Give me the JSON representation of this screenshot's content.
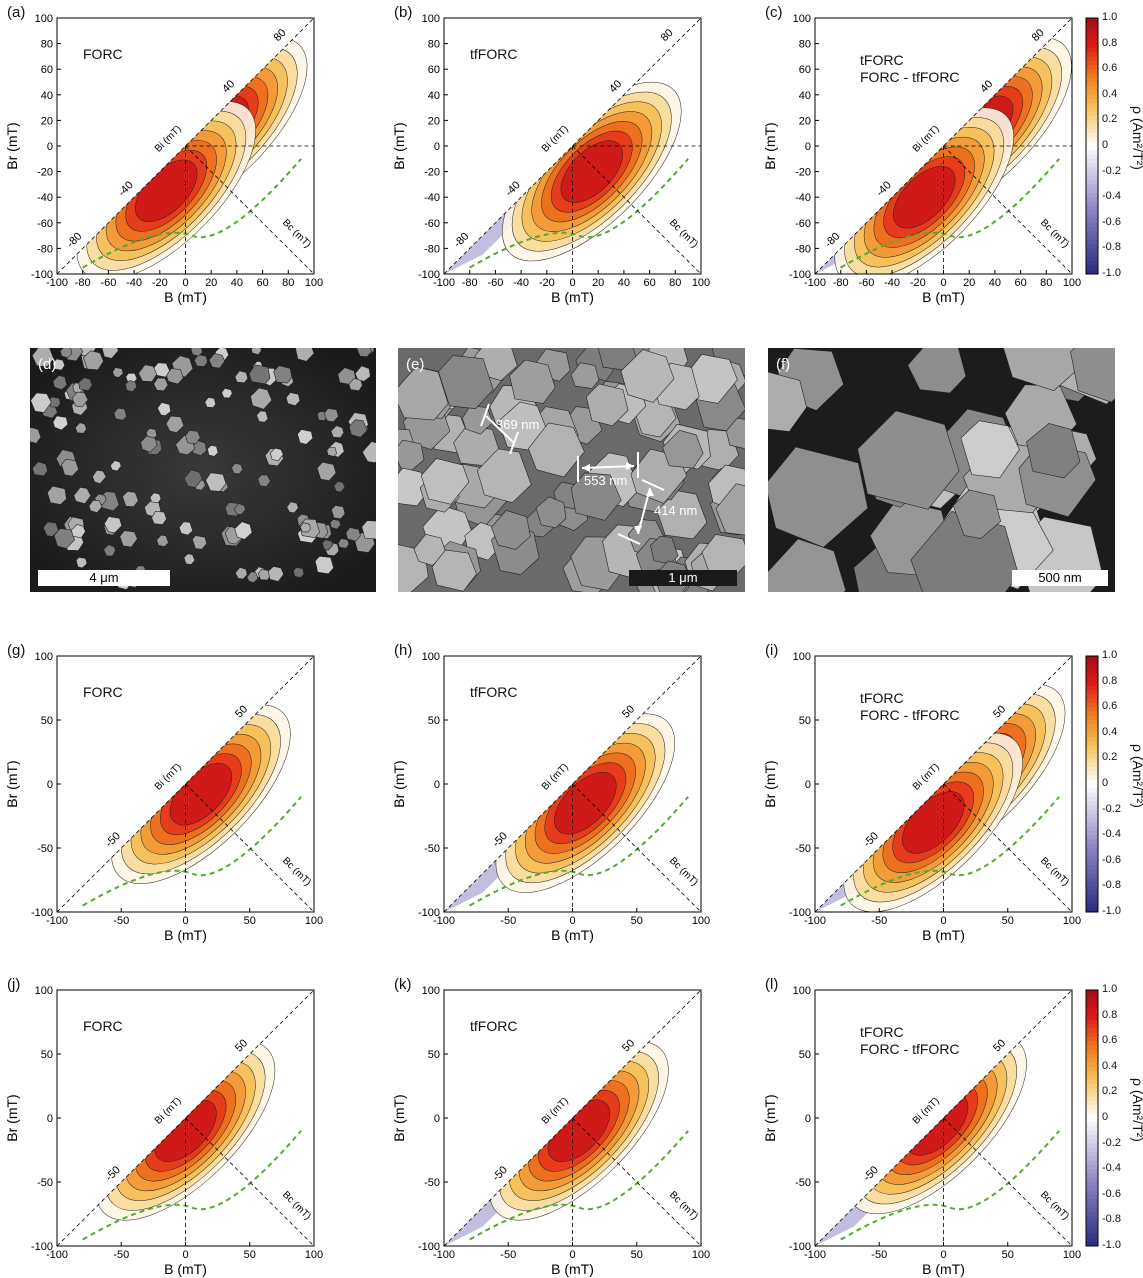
{
  "figure": {
    "sem_panels": [
      {
        "label": "(d)",
        "scale": "4 μm",
        "annotations": []
      },
      {
        "label": "(e)",
        "scale": "1 μm",
        "annotations": [
          "369 nm",
          "553 nm",
          "414 nm"
        ]
      },
      {
        "label": "(f)",
        "scale": "500 nm",
        "annotations": []
      }
    ],
    "colorbar": {
      "title": "ρ (Am²/T²)",
      "ticks": [
        "1.0",
        "0.8",
        "0.6",
        "0.4",
        "0.2",
        "0",
        "-0.2",
        "-0.4",
        "-0.6",
        "-0.8",
        "-1.0"
      ],
      "colors": [
        "#2d2f85",
        "#8e86c4",
        "#ffffff",
        "#f6c35a",
        "#ef7d1e",
        "#df1a1a",
        "#a50f15"
      ]
    }
  },
  "chart_data": [
    {
      "type": "heatmap",
      "panel": "(a)",
      "title": "FORC",
      "xlabel": "B (mT)",
      "ylabel": "Br (mT)",
      "xlim": [
        -100,
        100
      ],
      "ylim": [
        -100,
        100
      ],
      "xticks": [
        "-100",
        "-80",
        "-60",
        "-40",
        "-20",
        "0",
        "20",
        "40",
        "60",
        "80",
        "100"
      ],
      "yticks": [
        "-100",
        "-80",
        "-60",
        "-40",
        "-20",
        "0",
        "20",
        "40",
        "60",
        "80",
        "100"
      ],
      "contour_labels": [
        "80",
        "40",
        "-40",
        "-80"
      ],
      "axis_annotations": [
        "Bi (mT)",
        "Bc (mT)"
      ],
      "peaks": [
        [
          25,
          15
        ],
        [
          -15,
          -35
        ]
      ]
    },
    {
      "type": "heatmap",
      "panel": "(b)",
      "title": "tfFORC",
      "xlabel": "B (mT)",
      "ylabel": "Br (mT)",
      "xlim": [
        -100,
        100
      ],
      "ylim": [
        -100,
        100
      ],
      "xticks": [
        "-100",
        "-80",
        "-60",
        "-40",
        "-20",
        "0",
        "20",
        "40",
        "60",
        "80",
        "100"
      ],
      "yticks": [
        "-100",
        "-80",
        "-60",
        "-40",
        "-20",
        "0",
        "20",
        "40",
        "60",
        "80",
        "100"
      ],
      "contour_labels": [
        "80",
        "40",
        "-40",
        "-80"
      ],
      "axis_annotations": [
        "Bi (mT)",
        "Bc (mT)"
      ],
      "peaks": [
        [
          15,
          -20
        ]
      ]
    },
    {
      "type": "heatmap",
      "panel": "(c)",
      "title": "tFORC\nFORC - tfFORC",
      "xlabel": "B (mT)",
      "ylabel": "Br (mT)",
      "xlim": [
        -100,
        100
      ],
      "ylim": [
        -100,
        100
      ],
      "xticks": [
        "-100",
        "-80",
        "-60",
        "-40",
        "-20",
        "0",
        "20",
        "40",
        "60",
        "80",
        "100"
      ],
      "yticks": [
        "-100",
        "-80",
        "-60",
        "-40",
        "-20",
        "0",
        "20",
        "40",
        "60",
        "80",
        "100"
      ],
      "contour_labels": [
        "80",
        "40",
        "-40",
        "-80"
      ],
      "axis_annotations": [
        "Bi (mT)",
        "Bc (mT)"
      ],
      "peaks": [
        [
          30,
          15
        ],
        [
          -15,
          -40
        ]
      ]
    },
    {
      "type": "heatmap",
      "panel": "(g)",
      "title": "FORC",
      "xlabel": "B (mT)",
      "ylabel": "Br (mT)",
      "xlim": [
        -100,
        100
      ],
      "ylim": [
        -100,
        100
      ],
      "xticks": [
        "-100",
        "-50",
        "0",
        "50",
        "100"
      ],
      "yticks": [
        "-100",
        "-50",
        "0",
        "50",
        "100"
      ],
      "contour_labels": [
        "50",
        "-50"
      ],
      "axis_annotations": [
        "Bi (mT)",
        "Bc (mT)"
      ],
      "peaks": [
        [
          12,
          -8
        ]
      ]
    },
    {
      "type": "heatmap",
      "panel": "(h)",
      "title": "tfFORC",
      "xlabel": "B (mT)",
      "ylabel": "Br (mT)",
      "xlim": [
        -100,
        100
      ],
      "ylim": [
        -100,
        100
      ],
      "xticks": [
        "-100",
        "-50",
        "0",
        "50",
        "100"
      ],
      "yticks": [
        "-100",
        "-50",
        "0",
        "50",
        "100"
      ],
      "contour_labels": [
        "50",
        "-50"
      ],
      "axis_annotations": [
        "Bi (mT)",
        "Bc (mT)"
      ],
      "peaks": [
        [
          10,
          -15
        ]
      ]
    },
    {
      "type": "heatmap",
      "panel": "(i)",
      "title": "tFORC\nFORC - tfFORC",
      "xlabel": "B (mT)",
      "ylabel": "Br (mT)",
      "xlim": [
        -100,
        100
      ],
      "ylim": [
        -100,
        100
      ],
      "xticks": [
        "-100",
        "-50",
        "0",
        "50",
        "100"
      ],
      "yticks": [
        "-100",
        "-50",
        "0",
        "50",
        "100"
      ],
      "contour_labels": [
        "50",
        "-50"
      ],
      "axis_annotations": [
        "Bi (mT)",
        "Bc (mT)"
      ],
      "peaks": [
        [
          25,
          8
        ],
        [
          -8,
          -30
        ]
      ]
    },
    {
      "type": "heatmap",
      "panel": "(j)",
      "title": "FORC",
      "xlabel": "B (mT)",
      "ylabel": "Br (mT)",
      "xlim": [
        -100,
        100
      ],
      "ylim": [
        -100,
        100
      ],
      "xticks": [
        "-100",
        "-50",
        "0",
        "50",
        "100"
      ],
      "yticks": [
        "-100",
        "-50",
        "0",
        "50",
        "100"
      ],
      "contour_labels": [
        "50",
        "-50"
      ],
      "axis_annotations": [
        "Bi (mT)",
        "Bc (mT)"
      ],
      "peaks": [
        [
          0,
          -10
        ]
      ]
    },
    {
      "type": "heatmap",
      "panel": "(k)",
      "title": "tfFORC",
      "xlabel": "B (mT)",
      "ylabel": "Br (mT)",
      "xlim": [
        -100,
        100
      ],
      "ylim": [
        -100,
        100
      ],
      "xticks": [
        "-100",
        "-50",
        "0",
        "50",
        "100"
      ],
      "yticks": [
        "-100",
        "-50",
        "0",
        "50",
        "100"
      ],
      "contour_labels": [
        "50",
        "-50"
      ],
      "axis_annotations": [
        "Bi (mT)",
        "Bc (mT)"
      ],
      "peaks": [
        [
          5,
          -10
        ]
      ]
    },
    {
      "type": "heatmap",
      "panel": "(l)",
      "title": "tFORC\nFORC - tfFORC",
      "xlabel": "B (mT)",
      "ylabel": "Br (mT)",
      "xlim": [
        -100,
        100
      ],
      "ylim": [
        -100,
        100
      ],
      "xticks": [
        "-100",
        "-50",
        "0",
        "50",
        "100"
      ],
      "yticks": [
        "-100",
        "-50",
        "0",
        "50",
        "100"
      ],
      "contour_labels": [
        "50",
        "-50"
      ],
      "axis_annotations": [
        "Bi (mT)",
        "Bc (mT)"
      ],
      "peaks": [
        [
          -5,
          -5
        ]
      ]
    }
  ]
}
